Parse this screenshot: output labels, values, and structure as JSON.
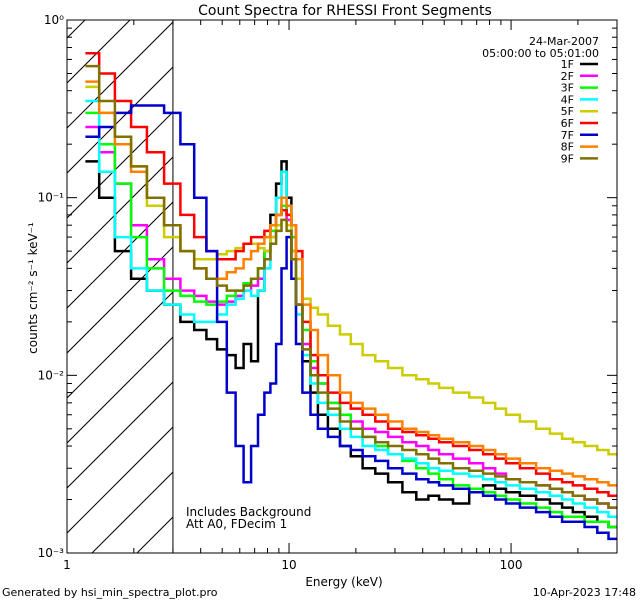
{
  "chart_data": {
    "type": "line",
    "title": "Count Spectra for RHESSI Front Segments",
    "xlabel": "Energy (keV)",
    "ylabel": "counts cm⁻² s⁻¹ keV⁻¹",
    "xscale": "log",
    "yscale": "log",
    "xlim": [
      1,
      300
    ],
    "ylim": [
      0.001,
      1
    ],
    "xticks": [
      {
        "value": 1,
        "label": "1"
      },
      {
        "value": 10,
        "label": "10"
      },
      {
        "value": 100,
        "label": "100"
      }
    ],
    "yticks": [
      {
        "value": 1,
        "label": "10⁰"
      },
      {
        "value": 0.1,
        "label": "10⁻¹"
      },
      {
        "value": 0.01,
        "label": "10⁻²"
      },
      {
        "value": 0.001,
        "label": "10⁻³"
      }
    ],
    "date": "24-Mar-2007",
    "time_range": "05:00:00 to 05:01:00",
    "notes": [
      "Includes Background",
      "Att A0, FDecim 1"
    ],
    "excluded_region_max_kev": 3,
    "legend_position": "top-right",
    "x": [
      1.3,
      1.5,
      1.8,
      2.1,
      2.5,
      3.0,
      3.5,
      4.0,
      4.5,
      5.0,
      5.5,
      6.0,
      6.5,
      7.0,
      7.5,
      8.0,
      8.5,
      9.0,
      9.5,
      10.0,
      10.5,
      11.0,
      12.0,
      13.0,
      14.0,
      16.0,
      18.0,
      20.0,
      23.0,
      26.0,
      30.0,
      35.0,
      40.0,
      45.0,
      50.0,
      60.0,
      70.0,
      80.0,
      90.0,
      100.0,
      120.0,
      140.0,
      160.0,
      180.0,
      200.0,
      230.0,
      260.0,
      290.0
    ],
    "series": [
      {
        "name": "1F",
        "color": "#000000",
        "values": [
          0.16,
          0.1,
          0.05,
          0.035,
          0.03,
          0.025,
          0.02,
          0.018,
          0.016,
          0.014,
          0.013,
          0.011,
          0.015,
          0.012,
          0.03,
          0.05,
          0.08,
          0.12,
          0.16,
          0.1,
          0.05,
          0.025,
          0.012,
          0.008,
          0.006,
          0.005,
          0.004,
          0.0035,
          0.003,
          0.0028,
          0.0025,
          0.0022,
          0.002,
          0.0021,
          0.002,
          0.0019,
          0.0022,
          0.0024,
          0.0023,
          0.0022,
          0.0021,
          0.002,
          0.0019,
          0.0018,
          0.0017,
          0.0016,
          0.0015,
          0.0014
        ]
      },
      {
        "name": "2F",
        "color": "#ff00ff",
        "values": [
          0.25,
          0.18,
          0.12,
          0.07,
          0.045,
          0.035,
          0.03,
          0.028,
          0.026,
          0.025,
          0.026,
          0.028,
          0.03,
          0.032,
          0.035,
          0.045,
          0.06,
          0.08,
          0.09,
          0.075,
          0.05,
          0.025,
          0.015,
          0.011,
          0.009,
          0.007,
          0.006,
          0.0055,
          0.005,
          0.0048,
          0.0045,
          0.0042,
          0.004,
          0.0038,
          0.0036,
          0.0034,
          0.0032,
          0.003,
          0.0028,
          0.0026,
          0.0025,
          0.0024,
          0.0023,
          0.0022,
          0.0021,
          0.002,
          0.0019,
          0.0018
        ]
      },
      {
        "name": "3F",
        "color": "#00ff00",
        "values": [
          0.3,
          0.2,
          0.12,
          0.06,
          0.04,
          0.03,
          0.028,
          0.026,
          0.025,
          0.026,
          0.028,
          0.03,
          0.033,
          0.035,
          0.04,
          0.05,
          0.065,
          0.08,
          0.09,
          0.08,
          0.06,
          0.035,
          0.018,
          0.012,
          0.009,
          0.007,
          0.006,
          0.005,
          0.0045,
          0.004,
          0.0036,
          0.0033,
          0.003,
          0.0028,
          0.0026,
          0.0024,
          0.0023,
          0.0022,
          0.0021,
          0.002,
          0.0019,
          0.0018,
          0.0017,
          0.0016,
          0.0016,
          0.0015,
          0.0015,
          0.0014
        ]
      },
      {
        "name": "4F",
        "color": "#00ffff",
        "values": [
          0.35,
          0.14,
          0.06,
          0.04,
          0.03,
          0.025,
          0.022,
          0.02,
          0.02,
          0.022,
          0.025,
          0.027,
          0.03,
          0.028,
          0.03,
          0.04,
          0.06,
          0.1,
          0.14,
          0.09,
          0.045,
          0.022,
          0.013,
          0.009,
          0.007,
          0.006,
          0.005,
          0.0045,
          0.004,
          0.0038,
          0.0036,
          0.0034,
          0.0032,
          0.003,
          0.0029,
          0.0028,
          0.0027,
          0.0026,
          0.0025,
          0.0024,
          0.0023,
          0.0022,
          0.0021,
          0.002,
          0.0019,
          0.0018,
          0.0017,
          0.0016
        ]
      },
      {
        "name": "5F",
        "color": "#cccc00",
        "values": [
          0.42,
          0.3,
          0.22,
          0.15,
          0.09,
          0.06,
          0.05,
          0.045,
          0.045,
          0.048,
          0.05,
          0.052,
          0.055,
          0.055,
          0.052,
          0.05,
          0.06,
          0.07,
          0.075,
          0.07,
          0.05,
          0.035,
          0.027,
          0.024,
          0.022,
          0.019,
          0.017,
          0.015,
          0.013,
          0.012,
          0.011,
          0.01,
          0.0095,
          0.009,
          0.0085,
          0.008,
          0.0075,
          0.007,
          0.0065,
          0.006,
          0.0055,
          0.005,
          0.0047,
          0.0044,
          0.0042,
          0.004,
          0.0038,
          0.0036
        ]
      },
      {
        "name": "6F",
        "color": "#ff0000",
        "values": [
          0.65,
          0.5,
          0.35,
          0.25,
          0.18,
          0.12,
          0.08,
          0.06,
          0.05,
          0.045,
          0.045,
          0.05,
          0.055,
          0.06,
          0.06,
          0.065,
          0.07,
          0.08,
          0.085,
          0.08,
          0.07,
          0.05,
          0.02,
          0.013,
          0.01,
          0.008,
          0.007,
          0.0065,
          0.006,
          0.0055,
          0.005,
          0.0048,
          0.0046,
          0.0044,
          0.0042,
          0.004,
          0.0038,
          0.0036,
          0.0034,
          0.0032,
          0.003,
          0.0028,
          0.0026,
          0.0025,
          0.0024,
          0.0023,
          0.0022,
          0.0021
        ]
      },
      {
        "name": "7F",
        "color": "#0000cc",
        "values": [
          0.22,
          0.25,
          0.3,
          0.33,
          0.33,
          0.3,
          0.2,
          0.1,
          0.05,
          0.02,
          0.008,
          0.004,
          0.0025,
          0.004,
          0.006,
          0.008,
          0.009,
          0.015,
          0.04,
          0.06,
          0.035,
          0.015,
          0.008,
          0.006,
          0.005,
          0.0045,
          0.004,
          0.0038,
          0.0035,
          0.0033,
          0.003,
          0.0028,
          0.0026,
          0.0025,
          0.0024,
          0.0023,
          0.0022,
          0.0021,
          0.002,
          0.0019,
          0.0018,
          0.0017,
          0.0016,
          0.0015,
          0.0015,
          0.0014,
          0.0013,
          0.0012
        ]
      },
      {
        "name": "8F",
        "color": "#ff8000",
        "values": [
          0.45,
          0.3,
          0.2,
          0.14,
          0.1,
          0.07,
          0.05,
          0.04,
          0.035,
          0.035,
          0.038,
          0.04,
          0.045,
          0.05,
          0.055,
          0.06,
          0.07,
          0.08,
          0.1,
          0.09,
          0.07,
          0.045,
          0.025,
          0.018,
          0.013,
          0.01,
          0.008,
          0.007,
          0.0065,
          0.006,
          0.0055,
          0.005,
          0.0048,
          0.0046,
          0.0044,
          0.0042,
          0.004,
          0.0038,
          0.0036,
          0.0034,
          0.0032,
          0.003,
          0.0029,
          0.0028,
          0.0027,
          0.0026,
          0.0025,
          0.0024
        ]
      },
      {
        "name": "9F",
        "color": "#807000",
        "values": [
          0.55,
          0.35,
          0.22,
          0.15,
          0.1,
          0.07,
          0.05,
          0.04,
          0.035,
          0.032,
          0.03,
          0.03,
          0.032,
          0.035,
          0.04,
          0.045,
          0.055,
          0.065,
          0.075,
          0.065,
          0.045,
          0.025,
          0.014,
          0.01,
          0.008,
          0.0065,
          0.0055,
          0.005,
          0.0045,
          0.0042,
          0.004,
          0.0038,
          0.0036,
          0.0034,
          0.0032,
          0.003,
          0.0029,
          0.0028,
          0.0027,
          0.0026,
          0.0025,
          0.0024,
          0.0023,
          0.0022,
          0.0021,
          0.002,
          0.0019,
          0.0018
        ]
      }
    ]
  },
  "footer": {
    "generated_by": "Generated by hsi_min_spectra_plot.pro",
    "timestamp": "10-Apr-2023 17:48"
  }
}
